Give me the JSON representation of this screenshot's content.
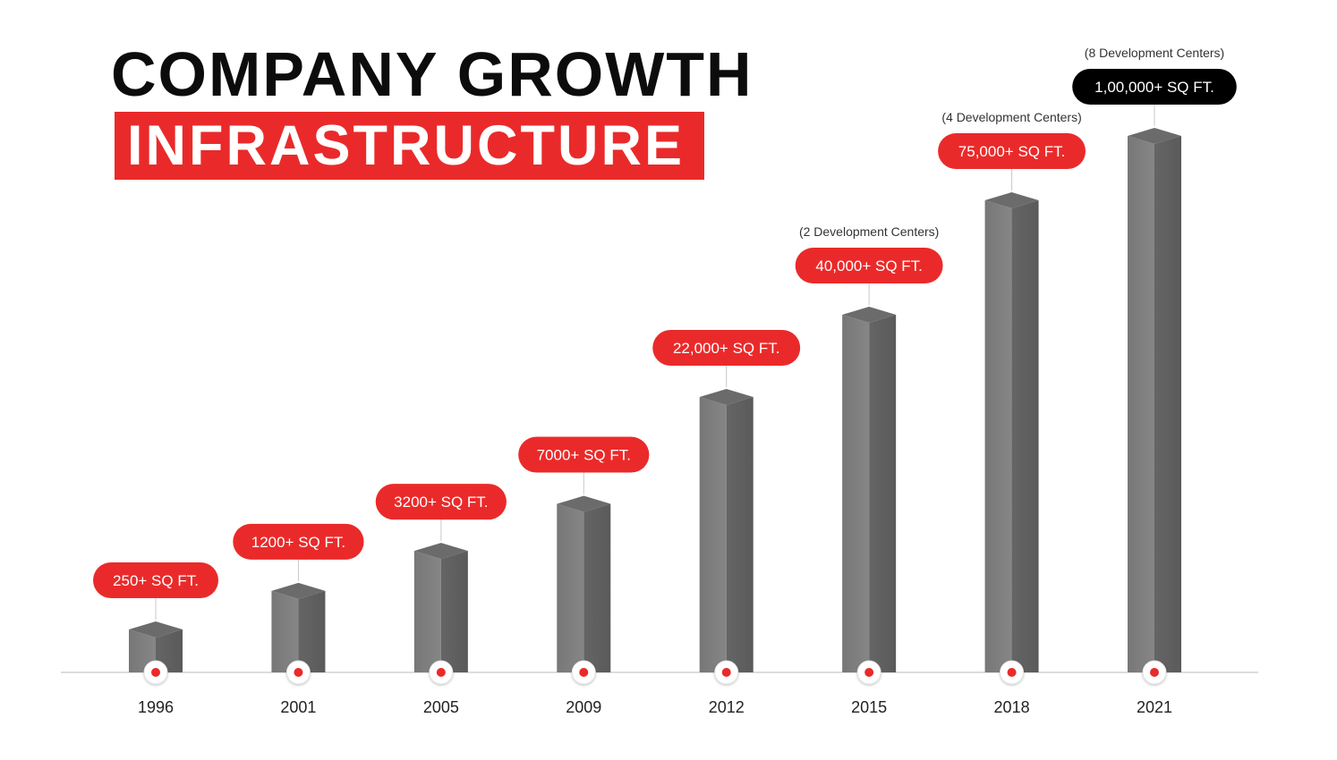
{
  "title": "COMPANY GROWTH",
  "subtitle": "INFRASTRUCTURE",
  "colors": {
    "accent": "#ea2a2a",
    "highlight": "#000000",
    "bar_front": "#7b7b7b",
    "bar_side": "#5f5f5f",
    "bar_top": "#6b6b6b"
  },
  "chart_data": {
    "type": "bar",
    "style": "3d-column",
    "categories": [
      "1996",
      "2001",
      "2005",
      "2009",
      "2012",
      "2015",
      "2018",
      "2021"
    ],
    "values": [
      250,
      1200,
      3200,
      7000,
      22000,
      40000,
      75000,
      100000
    ],
    "unit": "SQ FT",
    "data_labels": [
      "250+ SQ FT.",
      "1200+ SQ FT.",
      "3200+ SQ FT.",
      "7000+ SQ FT.",
      "22,000+ SQ FT.",
      "40,000+ SQ FT.",
      "75,000+ SQ FT.",
      "1,00,000+ SQ FT."
    ],
    "annotations": [
      "",
      "",
      "",
      "",
      "",
      "(2 Development Centers)",
      "(4 Development Centers)",
      "(8 Development Centers)"
    ],
    "highlight_index": 7,
    "grid": false,
    "legend": "none"
  }
}
